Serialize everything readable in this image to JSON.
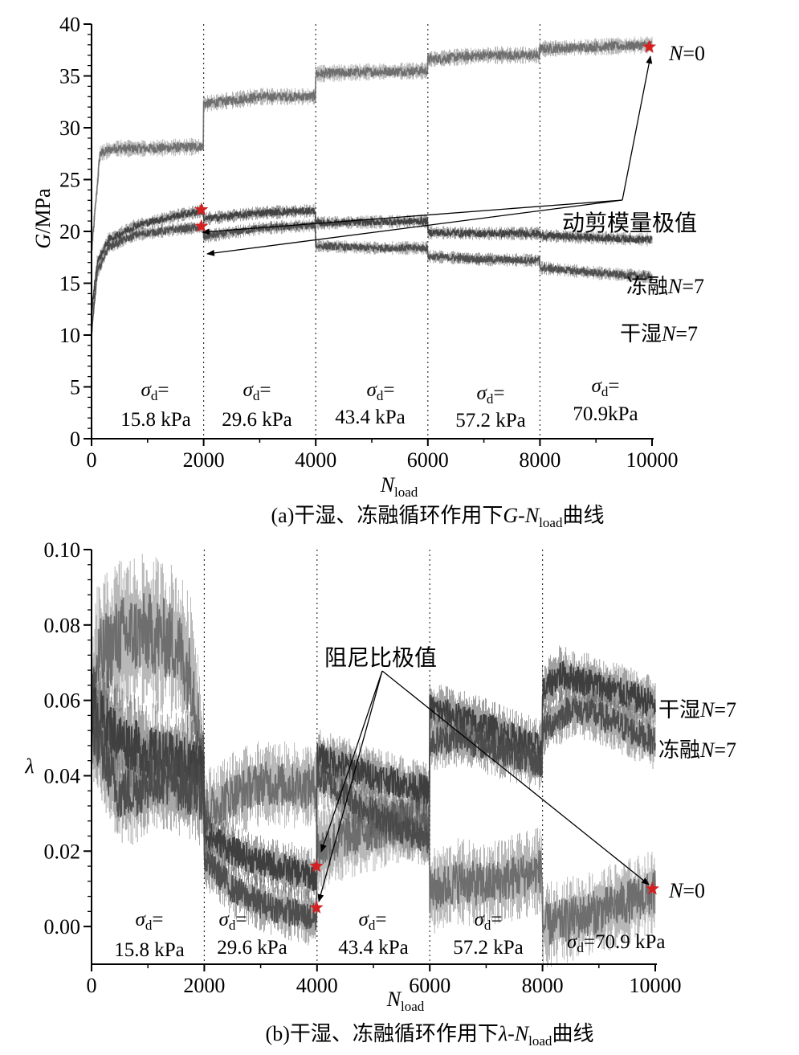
{
  "chart_data": [
    {
      "type": "line",
      "panel": "a",
      "caption": {
        "prefix": "(a)干湿、冻融循环作用下",
        "var": "G",
        "dash": "-",
        "x": "N",
        "sub": "load",
        "suffix": "曲线"
      },
      "xlabel": {
        "main": "N",
        "sub": "load"
      },
      "ylabel": {
        "main": "G",
        "unit": "/MPa"
      },
      "xlim": [
        0,
        10000
      ],
      "ylim": [
        0,
        40
      ],
      "xticks": [
        "0",
        "2000",
        "4000",
        "6000",
        "8000",
        "10000"
      ],
      "yticks": [
        "0",
        "5",
        "10",
        "15",
        "20",
        "25",
        "30",
        "35",
        "40"
      ],
      "stage_boundaries": [
        2000,
        4000,
        6000,
        8000
      ],
      "stages": [
        {
          "sym": "σ",
          "sub": "d",
          "eq": "=",
          "value": "15.8 kPa"
        },
        {
          "sym": "σ",
          "sub": "d",
          "eq": "=",
          "value": "29.6 kPa"
        },
        {
          "sym": "σ",
          "sub": "d",
          "eq": "=",
          "value": "43.4 kPa"
        },
        {
          "sym": "σ",
          "sub": "d",
          "eq": "=",
          "value": "57.2 kPa"
        },
        {
          "sym": "σ",
          "sub": "d",
          "eq": "=",
          "value": "70.9kPa"
        }
      ],
      "series": [
        {
          "key": "N0",
          "x": [
            0,
            150,
            400,
            1000,
            1999,
            2000,
            3000,
            3999,
            4000,
            5000,
            5999,
            6000,
            7000,
            7999,
            8000,
            9000,
            10000
          ],
          "y": [
            18,
            27.5,
            28,
            28,
            28.2,
            32.3,
            33,
            33,
            35.2,
            35.4,
            35.5,
            36.6,
            37,
            37,
            37.6,
            37.8,
            38
          ]
        },
        {
          "key": "FT7",
          "x": [
            0,
            100,
            300,
            800,
            1500,
            1999,
            2000,
            3000,
            3999,
            4000,
            5000,
            5999,
            6000,
            7000,
            7999,
            8000,
            9000,
            10000
          ],
          "y": [
            10,
            16,
            18.5,
            19.7,
            20.2,
            20.4,
            19.5,
            20.3,
            20.6,
            18.6,
            18.4,
            18.4,
            17.6,
            17.3,
            17.2,
            16.5,
            16,
            15.6
          ]
        },
        {
          "key": "WD7",
          "x": [
            0,
            100,
            300,
            800,
            1500,
            1999,
            2000,
            3000,
            3999,
            4000,
            5000,
            5999,
            6000,
            7000,
            7999,
            8000,
            9000,
            10000
          ],
          "y": [
            12,
            17,
            19.2,
            20.6,
            21.5,
            22,
            21.2,
            21.8,
            22,
            20.8,
            20.9,
            21,
            19.9,
            19.8,
            19.8,
            19.6,
            19.4,
            19.2
          ]
        }
      ],
      "series_labels": [
        {
          "text": "冻融",
          "ital": "N",
          "rest": "=7"
        },
        {
          "text": "干湿",
          "ital": "N",
          "rest": "=7"
        },
        {
          "text": "",
          "ital": "N",
          "rest": "=0"
        }
      ],
      "annotation": "动剪模量极值",
      "markers": [
        {
          "x": 9950,
          "y": 37.8
        },
        {
          "x": 1960,
          "y": 22.1
        },
        {
          "x": 1960,
          "y": 20.5
        }
      ],
      "star_color": "#d42020"
    },
    {
      "type": "line",
      "panel": "b",
      "caption": {
        "prefix": "(b)干湿、冻融循环作用下",
        "var": "λ",
        "dash": "-",
        "x": "N",
        "sub": "load",
        "suffix": "曲线"
      },
      "xlabel": {
        "main": "N",
        "sub": "load"
      },
      "ylabel": {
        "main": "λ"
      },
      "xlim": [
        0,
        10000
      ],
      "ylim": [
        -0.01,
        0.1
      ],
      "xticks": [
        "0",
        "2000",
        "4000",
        "6000",
        "8000",
        "10000"
      ],
      "yticks": [
        "0.00",
        "0.02",
        "0.04",
        "0.06",
        "0.08",
        "0.10"
      ],
      "stage_boundaries": [
        2000,
        4000,
        6000,
        8000
      ],
      "stages": [
        {
          "sym": "σ",
          "sub": "d",
          "eq": "=",
          "value": "15.8 kPa"
        },
        {
          "sym": "σ",
          "sub": "d",
          "eq": "=",
          "value": "29.6 kPa"
        },
        {
          "sym": "σ",
          "sub": "d",
          "eq": "=",
          "value": "43.4 kPa"
        },
        {
          "sym": "σ",
          "sub": "d",
          "eq": "=",
          "value": "57.2 kPa"
        },
        {
          "sym": "σ",
          "sub": "d",
          "eq": "=",
          "value": "70.9 kPa"
        }
      ],
      "series": [
        {
          "key": "N0",
          "x": [
            0,
            100,
            500,
            1000,
            1500,
            1800,
            1999,
            2000,
            2500,
            3000,
            3999,
            4000,
            4500,
            5000,
            5999,
            6000,
            6500,
            7000,
            7999,
            8000,
            8500,
            9000,
            10000
          ],
          "y": [
            0.055,
            0.07,
            0.077,
            0.078,
            0.075,
            0.065,
            0.04,
            0.03,
            0.035,
            0.038,
            0.037,
            0.02,
            0.024,
            0.026,
            0.03,
            0.009,
            0.012,
            0.011,
            0.015,
            0.0,
            0.002,
            0.004,
            0.009
          ]
        },
        {
          "key": "WD7",
          "x": [
            0,
            200,
            500,
            1000,
            1500,
            1999,
            2000,
            2500,
            3000,
            3999,
            4000,
            5000,
            5999,
            6000,
            7000,
            7999,
            8000,
            8300,
            9000,
            10000
          ],
          "y": [
            0.058,
            0.055,
            0.05,
            0.046,
            0.044,
            0.042,
            0.025,
            0.02,
            0.017,
            0.013,
            0.045,
            0.04,
            0.036,
            0.058,
            0.053,
            0.047,
            0.062,
            0.067,
            0.064,
            0.059
          ]
        },
        {
          "key": "FT7",
          "x": [
            0,
            200,
            500,
            800,
            1200,
            1999,
            2000,
            2500,
            3000,
            3999,
            4000,
            4800,
            5500,
            5999,
            6000,
            6500,
            7000,
            7999,
            8000,
            8500,
            9000,
            10000
          ],
          "y": [
            0.054,
            0.045,
            0.035,
            0.036,
            0.04,
            0.035,
            0.018,
            0.01,
            0.006,
            0.002,
            0.04,
            0.032,
            0.026,
            0.023,
            0.049,
            0.05,
            0.048,
            0.043,
            0.052,
            0.058,
            0.056,
            0.049
          ]
        }
      ],
      "series_labels": [
        {
          "text": "干湿",
          "ital": "N",
          "rest": "=7"
        },
        {
          "text": "冻融",
          "ital": "N",
          "rest": "=7"
        },
        {
          "text": "",
          "ital": "N",
          "rest": "=0"
        }
      ],
      "annotation": "阻尼比极值",
      "markers": [
        {
          "x": 9950,
          "y": 0.01
        },
        {
          "x": 3990,
          "y": 0.016
        },
        {
          "x": 3990,
          "y": 0.005
        }
      ],
      "star_color": "#d42020"
    }
  ]
}
